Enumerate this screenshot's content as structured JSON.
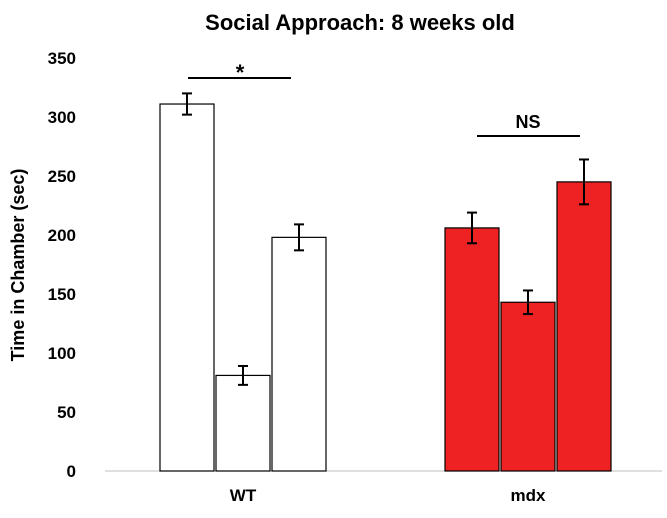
{
  "chart_data": {
    "type": "bar",
    "title": "Social Approach: 8 weeks old",
    "xlabel": "",
    "ylabel": "Time in Chamber (sec)",
    "ylim": [
      0,
      350
    ],
    "yticks": [
      "0",
      "50",
      "100",
      "150",
      "200",
      "250",
      "300",
      "350"
    ],
    "groups": [
      {
        "name": "WT",
        "fill": "#ffffff",
        "values": [
          311,
          81,
          198
        ],
        "errors": [
          9,
          8,
          11
        ],
        "significance": "*"
      },
      {
        "name": "mdx",
        "fill": "#ee2222",
        "values": [
          206,
          143,
          245
        ],
        "errors": [
          13,
          10,
          19
        ],
        "significance": "NS"
      }
    ],
    "grid": false,
    "legend": "none"
  }
}
